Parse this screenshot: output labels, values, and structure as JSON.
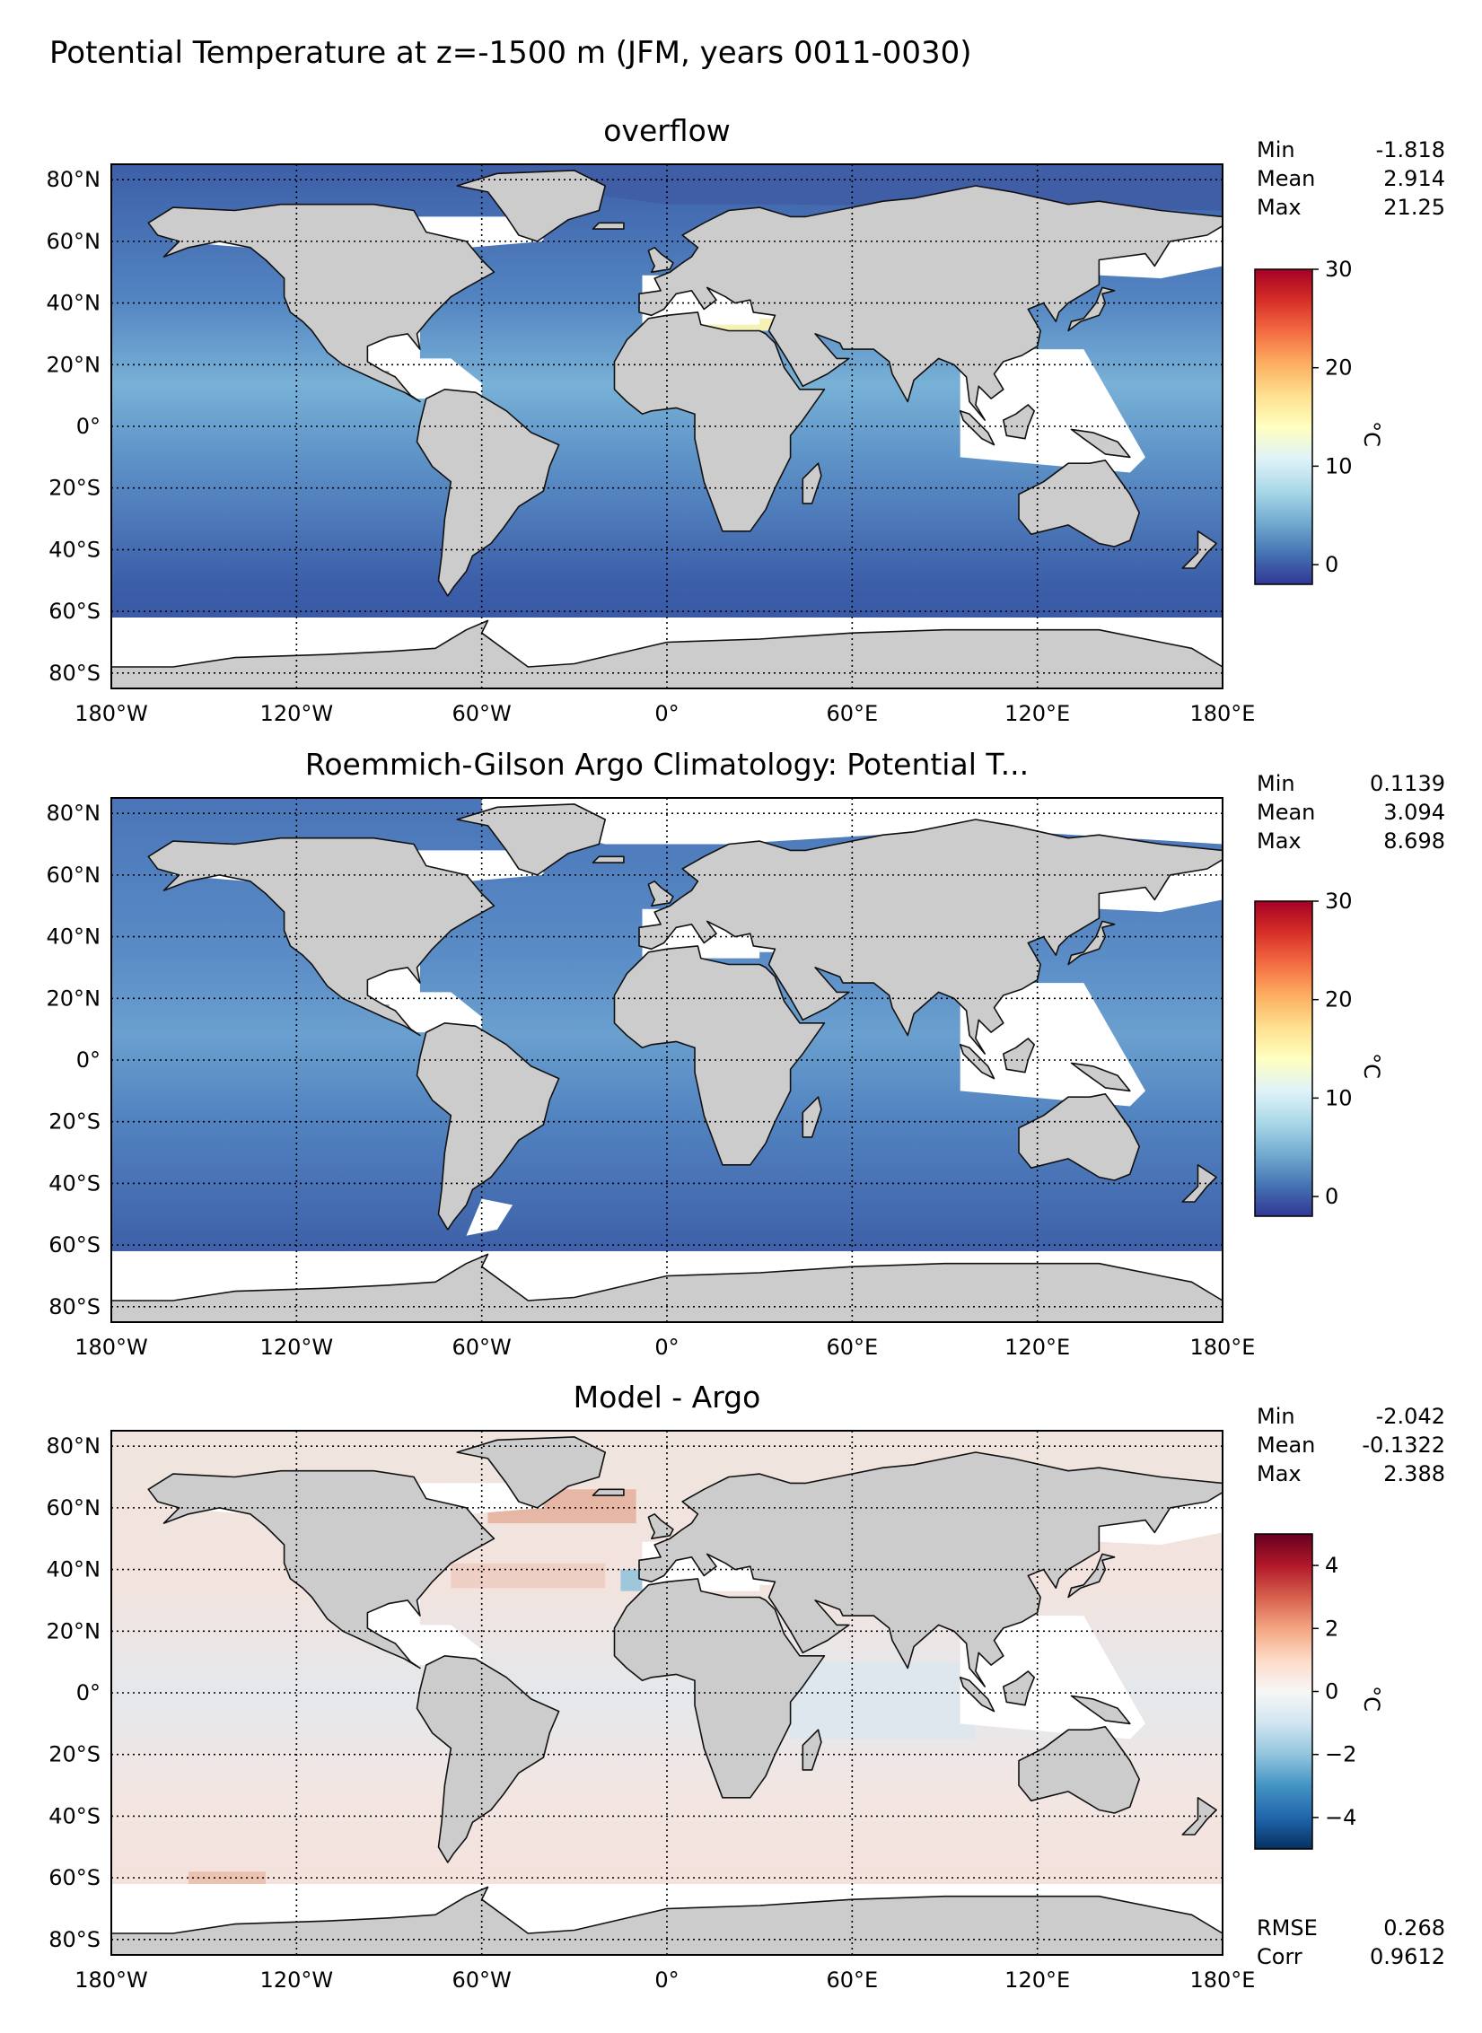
{
  "title": "Potential Temperature at z=-1500 m (JFM, years 0011-0030)",
  "chart_data": [
    {
      "type": "heatmap",
      "title": "overflow",
      "x_ticks": [
        "180°W",
        "120°W",
        "60°W",
        "0°",
        "60°E",
        "120°E",
        "180°E"
      ],
      "y_ticks": [
        "80°N",
        "60°N",
        "40°N",
        "20°N",
        "0°",
        "20°S",
        "40°S",
        "60°S",
        "80°S"
      ],
      "xlim": [
        -180,
        180
      ],
      "ylim": [
        -85,
        85
      ],
      "stats": [
        {
          "label": "Min",
          "value": "-1.818"
        },
        {
          "label": "Mean",
          "value": "2.914"
        },
        {
          "label": "Max",
          "value": "21.25"
        }
      ],
      "colorbar": {
        "label": "°C",
        "range": [
          -2,
          30
        ],
        "ticks": [
          "30",
          "20",
          "10",
          "0"
        ],
        "colormap": "RdYlBu_r",
        "colors": [
          "#313695",
          "#4575b4",
          "#74add1",
          "#abd9e9",
          "#e0f3f8",
          "#ffffbf",
          "#fee090",
          "#fdae61",
          "#f46d43",
          "#d73027",
          "#a50026"
        ]
      }
    },
    {
      "type": "heatmap",
      "title": "Roemmich-Gilson Argo Climatology: Potential T...",
      "x_ticks": [
        "180°W",
        "120°W",
        "60°W",
        "0°",
        "60°E",
        "120°E",
        "180°E"
      ],
      "y_ticks": [
        "80°N",
        "60°N",
        "40°N",
        "20°N",
        "0°",
        "20°S",
        "40°S",
        "60°S",
        "80°S"
      ],
      "xlim": [
        -180,
        180
      ],
      "ylim": [
        -85,
        85
      ],
      "stats": [
        {
          "label": "Min",
          "value": "0.1139"
        },
        {
          "label": "Mean",
          "value": "3.094"
        },
        {
          "label": "Max",
          "value": "8.698"
        }
      ],
      "colorbar": {
        "label": "°C",
        "range": [
          -2,
          30
        ],
        "ticks": [
          "30",
          "20",
          "10",
          "0"
        ],
        "colormap": "RdYlBu_r",
        "colors": [
          "#313695",
          "#4575b4",
          "#74add1",
          "#abd9e9",
          "#e0f3f8",
          "#ffffbf",
          "#fee090",
          "#fdae61",
          "#f46d43",
          "#d73027",
          "#a50026"
        ]
      }
    },
    {
      "type": "heatmap",
      "title": "Model - Argo",
      "x_ticks": [
        "180°W",
        "120°W",
        "60°W",
        "0°",
        "60°E",
        "120°E",
        "180°E"
      ],
      "y_ticks": [
        "80°N",
        "60°N",
        "40°N",
        "20°N",
        "0°",
        "20°S",
        "40°S",
        "60°S",
        "80°S"
      ],
      "xlim": [
        -180,
        180
      ],
      "ylim": [
        -85,
        85
      ],
      "stats": [
        {
          "label": "Min",
          "value": "-2.042"
        },
        {
          "label": "Mean",
          "value": "-0.1322"
        },
        {
          "label": "Max",
          "value": "2.388"
        }
      ],
      "extra_stats": [
        {
          "label": "RMSE",
          "value": "0.268"
        },
        {
          "label": "Corr",
          "value": "0.9612"
        }
      ],
      "colorbar": {
        "label": "°C",
        "range": [
          -5,
          5
        ],
        "ticks": [
          "4",
          "2",
          "0",
          "−2",
          "−4"
        ],
        "colormap": "RdBu_r",
        "colors": [
          "#053061",
          "#2166ac",
          "#4393c3",
          "#92c5de",
          "#d1e5f0",
          "#f7f7f7",
          "#fddbc7",
          "#f4a582",
          "#d6604d",
          "#b2182b",
          "#67001f"
        ]
      }
    }
  ]
}
